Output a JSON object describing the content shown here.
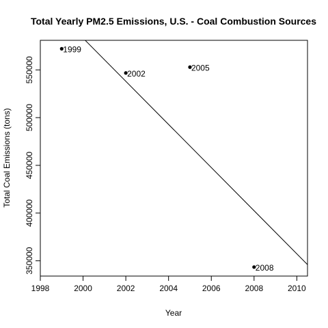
{
  "chart_data": {
    "type": "scatter",
    "title": "Total Yearly PM2.5 Emissions, U.S. - Coal Combustion Sources",
    "xlabel": "Year",
    "ylabel": "Total Coal Emissions (tons)",
    "xlim": [
      1998,
      2010.5
    ],
    "ylim": [
      334000,
      581000
    ],
    "x_ticks": [
      1998,
      2000,
      2002,
      2004,
      2006,
      2008,
      2010
    ],
    "y_ticks": [
      350000,
      400000,
      450000,
      500000,
      550000
    ],
    "points": [
      {
        "x": 1999,
        "y": 572126,
        "label": "1999"
      },
      {
        "x": 2002,
        "y": 546789,
        "label": "2002"
      },
      {
        "x": 2005,
        "y": 552881,
        "label": "2005"
      },
      {
        "x": 2008,
        "y": 343432,
        "label": "2008"
      }
    ],
    "trend_line": {
      "x": [
        2000.1,
        2010.5
      ],
      "y": [
        581000,
        346000
      ]
    },
    "grid": false,
    "legend": "none",
    "colors": {
      "points": "#000000",
      "line": "#000000",
      "background": "#ffffff"
    }
  }
}
